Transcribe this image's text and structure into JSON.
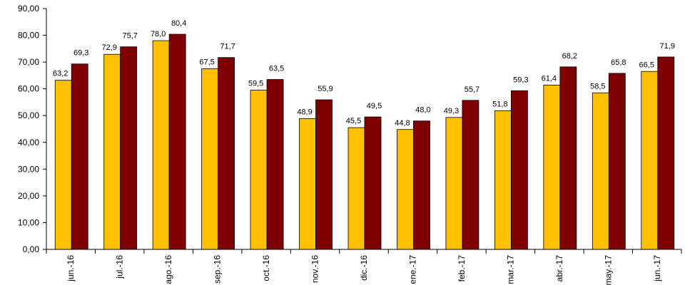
{
  "chart_data": {
    "type": "bar",
    "categories": [
      "jun.-16",
      "jul.-16",
      "ago.-16",
      "sep.-16",
      "oct.-16",
      "nov.-16",
      "dic.-16",
      "ene.-17",
      "feb.-17",
      "mar.-17",
      "abr.-17",
      "may.-17",
      "jun.-17"
    ],
    "series": [
      {
        "color": "#ffc000",
        "values": [
          63.2,
          72.9,
          78.0,
          67.5,
          59.5,
          48.9,
          45.5,
          44.8,
          49.3,
          51.8,
          61.4,
          58.5,
          66.5
        ],
        "value_labels": [
          "63,2",
          "72,9",
          "78,0",
          "67,5",
          "59,5",
          "48,9",
          "45,5",
          "44,8",
          "49,3",
          "51,8",
          "61,4",
          "58,5",
          "66,5"
        ]
      },
      {
        "color": "#7f0000",
        "values": [
          69.3,
          75.7,
          80.4,
          71.7,
          63.5,
          55.9,
          49.5,
          48.0,
          55.7,
          59.3,
          68.2,
          65.8,
          71.9
        ],
        "value_labels": [
          "69,3",
          "75,7",
          "80,4",
          "71,7",
          "63,5",
          "55,9",
          "49,5",
          "48,0",
          "55,7",
          "59,3",
          "68,2",
          "65,8",
          "71,9"
        ]
      }
    ],
    "ylim": [
      0,
      90
    ],
    "yticks": [
      {
        "value": 0,
        "label": "0,00"
      },
      {
        "value": 10,
        "label": "10,00"
      },
      {
        "value": 20,
        "label": "20,00"
      },
      {
        "value": 30,
        "label": "30,00"
      },
      {
        "value": 40,
        "label": "40,00"
      },
      {
        "value": 50,
        "label": "50,00"
      },
      {
        "value": 60,
        "label": "60,00"
      },
      {
        "value": 70,
        "label": "70,00"
      },
      {
        "value": 80,
        "label": "80,00"
      },
      {
        "value": 90,
        "label": "90,00"
      }
    ],
    "grid": false
  }
}
